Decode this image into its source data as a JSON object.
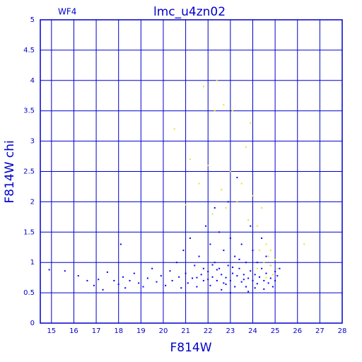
{
  "chart_data": {
    "type": "scatter",
    "title": "lmc_u4zn02",
    "annotation": "WF4",
    "x_label": "F814W",
    "y_label": "F814W chi",
    "xlim": [
      14.5,
      28
    ],
    "ylim": [
      0,
      5
    ],
    "xticks": [
      15,
      16,
      17,
      18,
      19,
      20,
      21,
      22,
      23,
      24,
      25,
      26,
      27,
      28
    ],
    "yticks": [
      0,
      0.5,
      1,
      1.5,
      2,
      2.5,
      3,
      3.5,
      4,
      4.5,
      5
    ],
    "grid": true,
    "axis_color": "#0000cc",
    "series": [
      {
        "color": "#0000ff",
        "x": [
          14.9,
          15.6,
          16.2,
          16.6,
          16.9,
          17.1,
          17.3,
          17.5,
          17.8,
          18.0,
          18.1,
          18.2,
          18.3,
          18.5,
          18.7,
          18.9,
          19.1,
          19.3,
          19.5,
          19.7,
          19.9,
          20.1,
          20.3,
          20.4,
          20.6,
          20.7,
          20.8,
          20.9,
          21.0,
          21.1,
          21.2,
          21.3,
          21.4,
          21.5,
          21.6,
          21.7,
          21.8,
          21.9,
          22.0,
          22.1,
          22.1,
          22.2,
          22.3,
          22.3,
          22.4,
          22.5,
          22.5,
          22.6,
          22.7,
          22.7,
          22.8,
          22.9,
          22.9,
          23.0,
          23.0,
          23.1,
          23.2,
          23.2,
          23.3,
          23.3,
          23.4,
          23.5,
          23.5,
          23.6,
          23.7,
          23.7,
          23.8,
          23.9,
          23.9,
          24.0,
          24.0,
          24.1,
          24.2,
          24.2,
          24.3,
          24.4,
          24.4,
          24.5,
          24.6,
          24.6,
          24.7,
          24.8,
          24.8,
          24.9,
          25.0,
          25.0,
          25.1,
          25.2,
          22.0,
          22.4,
          22.8,
          23.1,
          23.6,
          24.1,
          21.8,
          21.5,
          23.0,
          22.6,
          24.5,
          23.8,
          22.2,
          23.4
        ],
        "y": [
          0.88,
          0.86,
          0.78,
          0.7,
          0.62,
          0.72,
          0.55,
          0.84,
          0.7,
          0.64,
          1.3,
          0.76,
          0.58,
          0.7,
          0.82,
          0.66,
          0.6,
          0.74,
          0.9,
          0.68,
          0.78,
          0.62,
          0.86,
          0.7,
          1.0,
          0.76,
          0.58,
          1.2,
          0.82,
          0.66,
          1.4,
          0.74,
          0.95,
          0.6,
          1.1,
          0.8,
          0.7,
          1.6,
          0.85,
          1.3,
          0.62,
          0.76,
          1.9,
          1.0,
          0.7,
          0.9,
          1.5,
          0.8,
          0.66,
          1.2,
          0.75,
          2.0,
          0.95,
          0.7,
          1.4,
          0.82,
          0.6,
          1.1,
          2.4,
          0.78,
          0.9,
          0.68,
          1.3,
          0.8,
          1.0,
          0.6,
          0.74,
          1.6,
          0.86,
          0.7,
          1.2,
          0.8,
          0.65,
          1.0,
          0.76,
          0.9,
          1.4,
          0.7,
          0.82,
          1.1,
          0.66,
          0.95,
          0.74,
          0.6,
          0.85,
          0.7,
          0.78,
          0.9,
          0.72,
          0.88,
          0.64,
          0.92,
          0.72,
          0.58,
          0.9,
          0.75,
          0.5,
          0.55,
          0.56,
          0.52,
          0.96,
          1.05
        ]
      },
      {
        "color": "#f0e020",
        "x": [
          20.5,
          21.0,
          21.2,
          21.6,
          21.8,
          22.0,
          22.2,
          22.3,
          22.4,
          22.6,
          22.7,
          22.8,
          23.0,
          23.1,
          23.3,
          23.5,
          23.7,
          23.8,
          23.9,
          24.0,
          24.2,
          24.4,
          24.6,
          24.7,
          24.8,
          24.9,
          24.5,
          25.0,
          24.3,
          26.3,
          24.6,
          24.8,
          24.2,
          25.1
        ],
        "y": [
          3.2,
          1.95,
          2.7,
          2.3,
          3.9,
          2.6,
          1.8,
          3.5,
          4.0,
          2.2,
          3.6,
          1.9,
          2.5,
          3.5,
          2.0,
          2.3,
          2.9,
          1.7,
          3.3,
          2.1,
          1.6,
          1.9,
          1.3,
          1.1,
          0.95,
          0.8,
          1.0,
          1.05,
          1.2,
          1.3,
          0.75,
          1.2,
          0.9,
          0.9
        ]
      }
    ]
  }
}
